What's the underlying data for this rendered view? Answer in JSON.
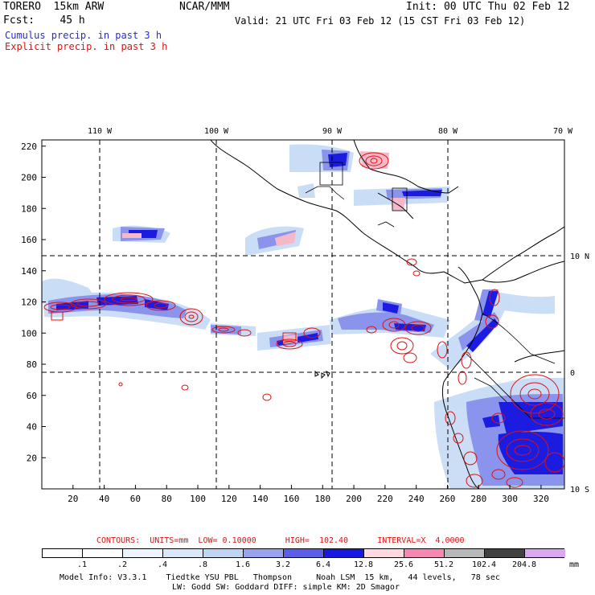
{
  "header": {
    "model": "TORERO  15km ARW",
    "center": "NCAR/MMM",
    "init": "Init: 00 UTC Thu 02 Feb 12",
    "fcst": "Fcst:    45 h",
    "valid": "Valid: 21 UTC Fri 03 Feb 12 (15 CST Fri 03 Feb 12)",
    "field1": "Cumulus precip. in past 3 h",
    "field2": "Explicit precip. in past 3 h",
    "colors": {
      "field1": "#2b2bd6",
      "field2": "#e01010"
    }
  },
  "map": {
    "lon_labels": [
      "110 W",
      "100 W",
      "90 W",
      "80 W",
      "70 W"
    ],
    "lat_labels": [
      "10 N",
      "0",
      "10 S"
    ],
    "x_ticks": [
      "20",
      "40",
      "60",
      "80",
      "100",
      "120",
      "140",
      "160",
      "180",
      "200",
      "220",
      "240",
      "260",
      "280",
      "300",
      "320"
    ],
    "y_ticks": [
      "220",
      "200",
      "180",
      "160",
      "140",
      "120",
      "100",
      "80",
      "60",
      "40",
      "20"
    ],
    "x_range": [
      0,
      335
    ],
    "y_range": [
      0,
      224
    ]
  },
  "contour_info": {
    "text": "CONTOURS:  UNITS=mm  LOW= 0.10000      HIGH=  102.40      INTERVAL=X  4.0000",
    "color": "#e01010"
  },
  "legend": {
    "labels": [
      ".1",
      ".2",
      ".4",
      ".8",
      "1.6",
      "3.2",
      "6.4",
      "12.8",
      "25.6",
      "51.2",
      "102.4",
      "204.8"
    ],
    "units": "mm",
    "colors": [
      "#ffffff",
      "#ffffff",
      "#eef4ff",
      "#d8e8f8",
      "#c0d4f4",
      "#9aa4ee",
      "#5a5ee8",
      "#1818e0",
      "#ffd8e0",
      "#f488b0",
      "#b8b8b8",
      "#404040",
      "#d8a8f0"
    ]
  },
  "footer": {
    "line1": "Model Info: V3.3.1    Tiedtke YSU PBL   Thompson     Noah LSM  15 km,   44 levels,   78 sec",
    "line2": "LW: Godd SW: Goddard DIFF: simple KM: 2D Smagor"
  }
}
